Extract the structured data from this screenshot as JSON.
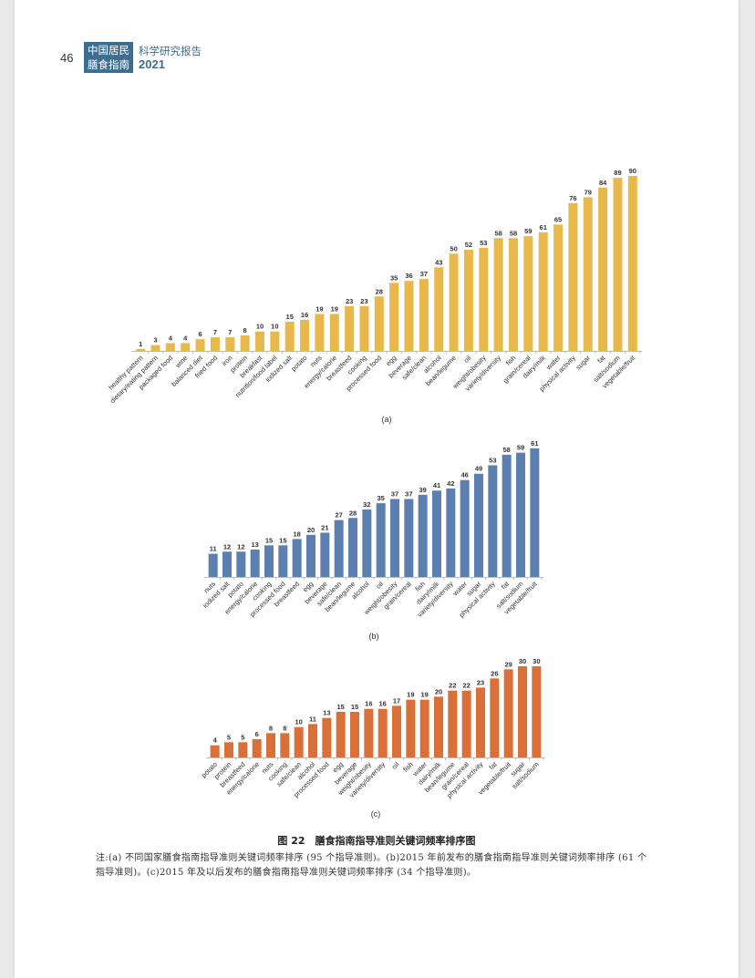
{
  "header": {
    "page_number": "46",
    "logo_line1": "中国居民",
    "logo_line2": "膳食指南",
    "report_title": "科学研究报告",
    "report_year": "2021"
  },
  "figure": {
    "caption": "图 22　膳食指南指导准则关键词频率排序图",
    "note": "注:(a) 不同国家膳食指南指导准则关键词频率排序 (95 个指导准则)。(b)2015 年前发布的膳食指南指导准则关键词频率排序 (61 个指导准则)。(c)2015 年及以后发布的膳食指南指导准则关键词频率排序 (34 个指导准则)。"
  },
  "chart_data": [
    {
      "type": "bar",
      "panel_label": "(a)",
      "color": "#e8b84b",
      "categories": [
        "healthy pattern",
        "dietary/eating pattern",
        "packaged food",
        "wine",
        "balanced diet",
        "fried food",
        "iron",
        "protein",
        "breakfast",
        "nutrition/food label",
        "iodized salt",
        "potato",
        "nuts",
        "energy/calorie",
        "breastfeed",
        "cooking",
        "processed food",
        "egg",
        "beverage",
        "safe/clean",
        "alcohol",
        "bean/legume",
        "oil",
        "weight/obesity",
        "variety/diversity",
        "fish",
        "grain/cereal",
        "dairy/milk",
        "water",
        "physical activity",
        "sugar",
        "fat",
        "salt/sodium",
        "vegetable/fruit"
      ],
      "values": [
        1,
        3,
        4,
        4,
        6,
        7,
        7,
        8,
        10,
        10,
        15,
        16,
        19,
        19,
        23,
        23,
        28,
        35,
        36,
        37,
        43,
        50,
        52,
        53,
        58,
        58,
        59,
        61,
        65,
        76,
        79,
        84,
        89,
        90
      ],
      "ylim": [
        0,
        90
      ]
    },
    {
      "type": "bar",
      "panel_label": "(b)",
      "color": "#5b7fae",
      "categories": [
        "nuts",
        "iodized salt",
        "potato",
        "energy/calorie",
        "cooking",
        "processed food",
        "breastfeed",
        "egg",
        "beverage",
        "safe/clean",
        "bean/legume",
        "alcohol",
        "oil",
        "weight/obesity",
        "grain/cereal",
        "fish",
        "dairy/milk",
        "variety/diversity",
        "water",
        "sugar",
        "physical activity",
        "fat",
        "salt/sodium",
        "vegetable/fruit"
      ],
      "values": [
        11,
        12,
        12,
        13,
        15,
        15,
        18,
        20,
        21,
        27,
        28,
        32,
        35,
        37,
        37,
        39,
        41,
        42,
        46,
        49,
        53,
        58,
        59,
        61
      ],
      "ylim": [
        0,
        61
      ]
    },
    {
      "type": "bar",
      "panel_label": "(c)",
      "color": "#d9703a",
      "categories": [
        "potato",
        "protein",
        "breastfeed",
        "energy/calorie",
        "nuts",
        "cooking",
        "safe/clean",
        "alcohol",
        "processed food",
        "egg",
        "beverage",
        "weight/obesity",
        "variety/diversity",
        "oil",
        "fish",
        "water",
        "dairy/milk",
        "bean/legume",
        "grain/cereal",
        "physical activity",
        "fat",
        "vegetable/fruit",
        "sugar",
        "salt/sodium"
      ],
      "values": [
        4,
        5,
        5,
        6,
        8,
        8,
        10,
        11,
        13,
        15,
        15,
        16,
        16,
        17,
        19,
        19,
        20,
        22,
        22,
        23,
        26,
        29,
        30,
        30
      ],
      "ylim": [
        0,
        30
      ]
    }
  ]
}
